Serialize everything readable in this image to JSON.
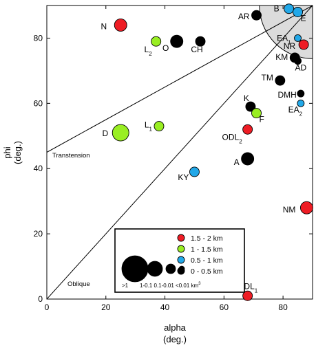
{
  "chart_data": {
    "type": "scatter",
    "xlabel": "alpha",
    "xlabel_unit": "(deg.)",
    "ylabel": "phi",
    "ylabel_unit": "(deg.)",
    "xlim": [
      0,
      90
    ],
    "ylim": [
      0,
      90
    ],
    "x_ticks": [
      0,
      20,
      40,
      60,
      80
    ],
    "y_ticks": [
      0,
      20,
      40,
      60,
      80
    ],
    "grid": false,
    "region_labels": {
      "transtension": "Transtension",
      "oblique": "Oblique"
    },
    "volume_colors": {
      "1.5-2": "#ee1c24",
      "1-1.5": "#99ee22",
      "0.5-1": "#22a8e8",
      "0-0.5": "#000000"
    },
    "size_classes": {
      ">1": 12,
      "1-0.1": 9,
      "0.1-0.01": 7,
      "<0.01": 5
    },
    "points": [
      {
        "label": "N",
        "sub": "",
        "x": 25,
        "y": 84,
        "color_class": "1.5-2",
        "size_class": "1-0.1"
      },
      {
        "label": "L",
        "sub": "2",
        "x": 37,
        "y": 79,
        "color_class": "1-1.5",
        "size_class": "0.1-0.01"
      },
      {
        "label": "O",
        "sub": "",
        "x": 44,
        "y": 79,
        "color_class": "0-0.5",
        "size_class": "1-0.1"
      },
      {
        "label": "CH",
        "sub": "",
        "x": 52,
        "y": 79,
        "color_class": "0-0.5",
        "size_class": "0.1-0.01"
      },
      {
        "label": "AR",
        "sub": "",
        "x": 71,
        "y": 87,
        "color_class": "0-0.5",
        "size_class": "0.1-0.01"
      },
      {
        "label": "B",
        "sub": "",
        "x": 82,
        "y": 89,
        "color_class": "0.5-1",
        "size_class": "0.1-0.01"
      },
      {
        "label": "E",
        "sub": "",
        "x": 85,
        "y": 88,
        "color_class": "0.5-1",
        "size_class": "0.1-0.01"
      },
      {
        "label": "EA",
        "sub": "1",
        "x": 85,
        "y": 80,
        "color_class": "0.5-1",
        "size_class": "<0.01"
      },
      {
        "label": "NR",
        "sub": "",
        "x": 87,
        "y": 78,
        "color_class": "1.5-2",
        "size_class": "0.1-0.01"
      },
      {
        "label": "KM",
        "sub": "",
        "x": 84,
        "y": 74,
        "color_class": "0-0.5",
        "size_class": "0.1-0.01"
      },
      {
        "label": "AD",
        "sub": "",
        "x": 85,
        "y": 73,
        "color_class": "0-0.5",
        "size_class": "<0.01"
      },
      {
        "label": "TM",
        "sub": "",
        "x": 79,
        "y": 67,
        "color_class": "0-0.5",
        "size_class": "0.1-0.01"
      },
      {
        "label": "DMH",
        "sub": "",
        "x": 86,
        "y": 63,
        "color_class": "0-0.5",
        "size_class": "<0.01"
      },
      {
        "label": "EA",
        "sub": "2",
        "x": 86,
        "y": 60,
        "color_class": "0.5-1",
        "size_class": "<0.01"
      },
      {
        "label": "K",
        "sub": "",
        "x": 69,
        "y": 59,
        "color_class": "0-0.5",
        "size_class": "0.1-0.01"
      },
      {
        "label": "F",
        "sub": "",
        "x": 71,
        "y": 57,
        "color_class": "1-1.5",
        "size_class": "0.1-0.01"
      },
      {
        "label": "ODL",
        "sub": "2",
        "x": 68,
        "y": 52,
        "color_class": "1.5-2",
        "size_class": "0.1-0.01"
      },
      {
        "label": "D",
        "sub": "",
        "x": 25,
        "y": 51,
        "color_class": "1-1.5",
        "size_class": ">1"
      },
      {
        "label": "L",
        "sub": "1",
        "x": 38,
        "y": 53,
        "color_class": "1-1.5",
        "size_class": "0.1-0.01"
      },
      {
        "label": "A",
        "sub": "",
        "x": 68,
        "y": 43,
        "color_class": "0-0.5",
        "size_class": "1-0.1"
      },
      {
        "label": "KY",
        "sub": "",
        "x": 50,
        "y": 39,
        "color_class": "0.5-1",
        "size_class": "0.1-0.01"
      },
      {
        "label": "NM",
        "sub": "",
        "x": 88,
        "y": 28,
        "color_class": "1.5-2",
        "size_class": "1-0.1"
      },
      {
        "label": "ODL",
        "sub": "1",
        "x": 68,
        "y": 1,
        "color_class": "1.5-2",
        "size_class": "0.1-0.01"
      }
    ],
    "legend": {
      "placement": "bottom-center",
      "color_entries": [
        {
          "label": "1.5 - 2 km",
          "color_class": "1.5-2"
        },
        {
          "label": "1 - 1.5 km",
          "color_class": "1-1.5"
        },
        {
          "label": "0.5 - 1 km",
          "color_class": "0.5-1"
        },
        {
          "label": "0 - 0.5 km",
          "color_class": "0-0.5"
        }
      ],
      "size_labels": [
        ">1",
        "1-0.1",
        "0.1-0.01",
        "<0.01 km"
      ],
      "size_unit_sup": "3"
    }
  }
}
